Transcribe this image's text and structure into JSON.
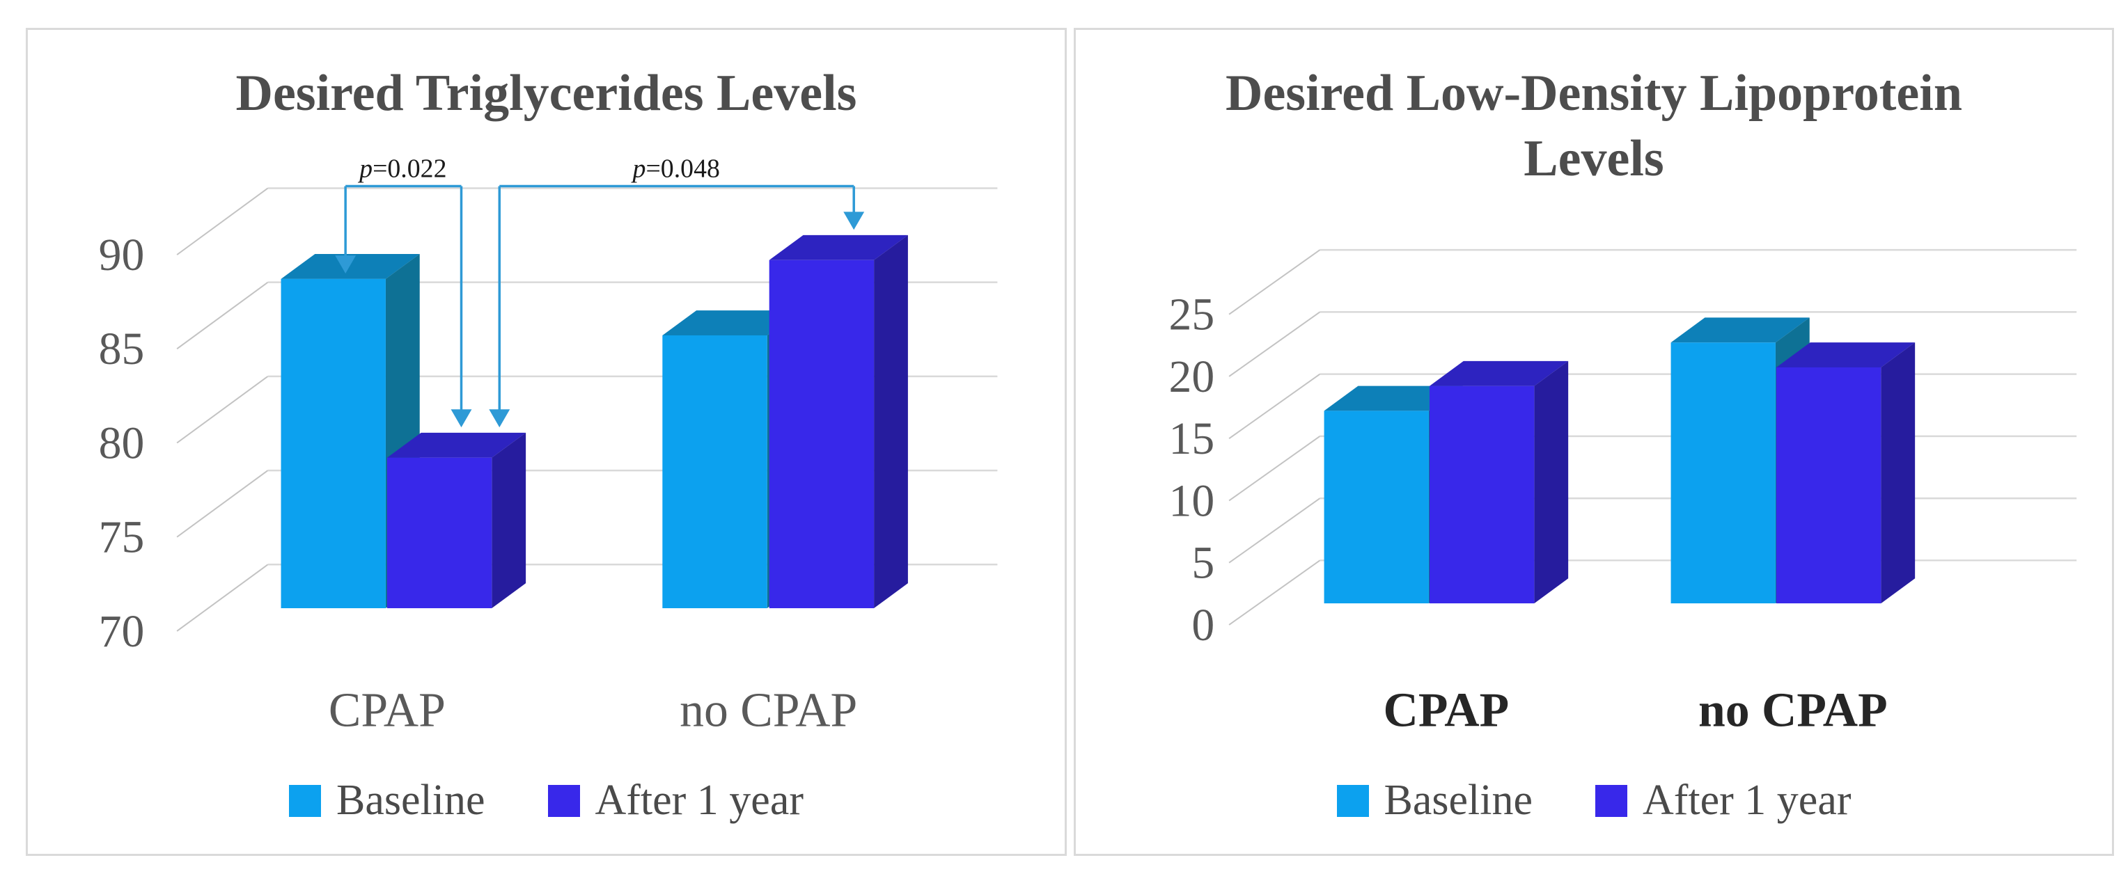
{
  "page": {
    "background": "#ffffff",
    "figure_type": "two 3D clustered column charts"
  },
  "chart_data": [
    {
      "type": "bar",
      "variant": "3d-clustered-column",
      "title": "Desired Triglycerides Levels",
      "title_lines": [
        "Desired Triglycerides Levels"
      ],
      "categories": [
        "CPAP",
        "no CPAP"
      ],
      "series": [
        {
          "name": "Baseline",
          "values": [
            87.5,
            84.5
          ]
        },
        {
          "name": "After 1 year",
          "values": [
            78,
            88.5
          ]
        }
      ],
      "ylim": [
        70,
        90
      ],
      "ytick_step": 5,
      "yticks": [
        "70",
        "75",
        "80",
        "85",
        "90"
      ],
      "grid": true,
      "legend_position": "bottom",
      "annotations": [
        {
          "label": "p=0.022",
          "compares": [
            "CPAP Baseline",
            "CPAP After 1 year"
          ]
        },
        {
          "label": "p=0.048",
          "compares": [
            "CPAP After 1 year",
            "no CPAP After 1 year"
          ]
        }
      ]
    },
    {
      "type": "bar",
      "variant": "3d-clustered-column",
      "title": "Desired Low-Density Lipoprotein Levels",
      "title_lines": [
        "Desired Low-Density Lipoprotein",
        "Levels"
      ],
      "categories": [
        "CPAP",
        "no CPAP"
      ],
      "series": [
        {
          "name": "Baseline",
          "values": [
            15.5,
            21
          ]
        },
        {
          "name": "After 1 year",
          "values": [
            17.5,
            19
          ]
        }
      ],
      "ylim": [
        0,
        25
      ],
      "ytick_step": 5,
      "yticks": [
        "0",
        "5",
        "10",
        "15",
        "20",
        "25"
      ],
      "grid": true,
      "legend_position": "bottom",
      "annotations": []
    }
  ],
  "colors": {
    "baseline_front": "#0ca1ef",
    "baseline_top": "#0d80b8",
    "baseline_side": "#0e7195",
    "after_front": "#3828ea",
    "after_top": "#2d23c0",
    "after_side": "#261c9e",
    "annotation_line": "#2e9ad6",
    "grid_line": "#d9d9d9",
    "depth_tick_line": "#c3c3c3",
    "title_text": "#4d4d4d",
    "tick_text": "#595959",
    "category_text_left": "#595959",
    "category_text_right": "#262626",
    "legend_text": "#4a4a4a",
    "panel_border": "#dadada"
  }
}
